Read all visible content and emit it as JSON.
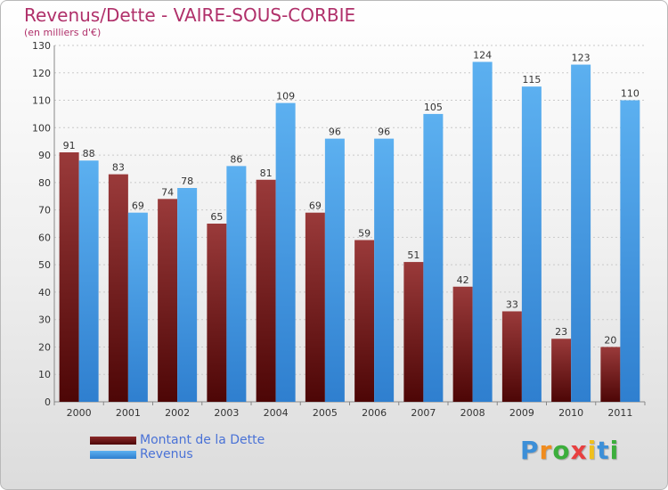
{
  "chart_data": {
    "type": "bar",
    "title": "Revenus/Dette - VAIRE-SOUS-CORBIE",
    "subtitle": "(en milliers d'€)",
    "categories": [
      "2000",
      "2001",
      "2002",
      "2003",
      "2004",
      "2005",
      "2006",
      "2007",
      "2008",
      "2009",
      "2010",
      "2011"
    ],
    "series": [
      {
        "name": "Montant de la Dette",
        "color": "#7a1c1c",
        "values": [
          91,
          83,
          74,
          65,
          81,
          69,
          59,
          51,
          42,
          33,
          23,
          20
        ]
      },
      {
        "name": "Revenus",
        "color": "#4aa0e6",
        "values": [
          88,
          69,
          78,
          86,
          109,
          96,
          96,
          105,
          124,
          115,
          123,
          110
        ]
      }
    ],
    "ylim": [
      0,
      130
    ],
    "yticks": [
      0,
      10,
      20,
      30,
      40,
      50,
      60,
      70,
      80,
      90,
      100,
      110,
      120,
      130
    ],
    "grid": true,
    "legend_position": "bottom-left"
  },
  "branding": {
    "logo_letters": [
      "P",
      "r",
      "o",
      "x",
      "i",
      "t",
      "i"
    ],
    "logo_colors": [
      "#3c8fd8",
      "#f08c1e",
      "#3cae3c",
      "#e84040",
      "#f0c01e",
      "#3c8fd8",
      "#3cae3c"
    ]
  }
}
